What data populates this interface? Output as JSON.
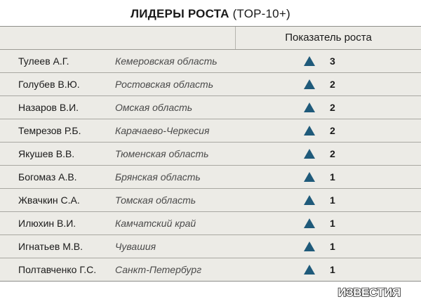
{
  "title_bold": "ЛИДЕРЫ РОСТА",
  "title_rest": " (TOP-10+)",
  "header": {
    "growth_label": "Показатель роста"
  },
  "colors": {
    "triangle": "#1f5a7a",
    "table_bg": "#ecebe6"
  },
  "logo_text": "ИЗВЕСТИЯ",
  "chart_data": {
    "type": "table",
    "columns": [
      "",
      "",
      "Показатель роста"
    ],
    "rows": [
      {
        "name": "Тулеев А.Г.",
        "region": "Кемеровская область",
        "value": 3
      },
      {
        "name": "Голубев В.Ю.",
        "region": "Ростовская область",
        "value": 2
      },
      {
        "name": "Назаров В.И.",
        "region": "Омская область",
        "value": 2
      },
      {
        "name": "Темрезов Р.Б.",
        "region": "Карачаево-Черкесия",
        "value": 2
      },
      {
        "name": "Якушев В.В.",
        "region": "Тюменская область",
        "value": 2
      },
      {
        "name": "Богомаз А.В.",
        "region": "Брянская область",
        "value": 1
      },
      {
        "name": "Жвачкин С.А.",
        "region": "Томская область",
        "value": 1
      },
      {
        "name": "Илюхин В.И.",
        "region": "Камчатский край",
        "value": 1
      },
      {
        "name": "Игнатьев М.В.",
        "region": "Чувашия",
        "value": 1
      },
      {
        "name": "Полтавченко Г.С.",
        "region": "Санкт-Петербург",
        "value": 1
      }
    ]
  }
}
